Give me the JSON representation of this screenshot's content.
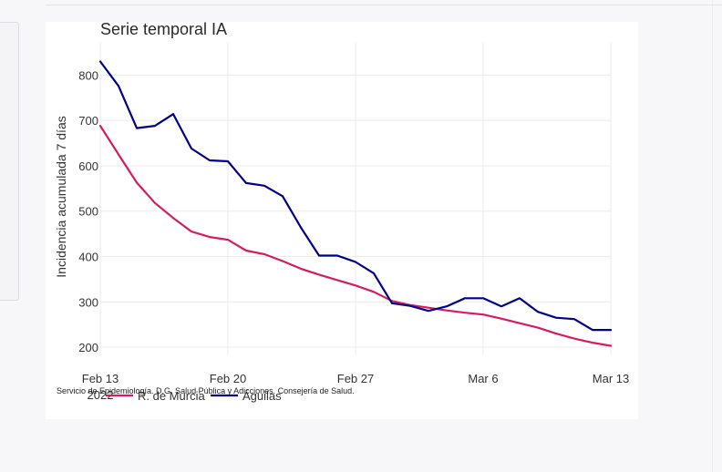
{
  "chart_data": {
    "type": "line",
    "title": "Serie temporal IA",
    "xlabel": "",
    "ylabel": "Incidencia acumulada 7 días",
    "x_ticks": [
      {
        "date": "2022-02-13",
        "label": "Feb 13",
        "sublabel": "2022"
      },
      {
        "date": "2022-02-20",
        "label": "Feb 20",
        "sublabel": ""
      },
      {
        "date": "2022-02-27",
        "label": "Feb 27",
        "sublabel": ""
      },
      {
        "date": "2022-03-06",
        "label": "Mar 6",
        "sublabel": ""
      },
      {
        "date": "2022-03-13",
        "label": "Mar 13",
        "sublabel": ""
      }
    ],
    "y_ticks": [
      "200",
      "300",
      "400",
      "500",
      "600",
      "700",
      "800"
    ],
    "xlim": [
      "2022-02-13",
      "2022-03-13"
    ],
    "ylim": [
      182,
      843
    ],
    "grid": true,
    "legend_position": "bottom-left",
    "x": [
      "2022-02-13",
      "2022-02-14",
      "2022-02-15",
      "2022-02-16",
      "2022-02-17",
      "2022-02-18",
      "2022-02-19",
      "2022-02-20",
      "2022-02-21",
      "2022-02-22",
      "2022-02-23",
      "2022-02-24",
      "2022-02-25",
      "2022-02-26",
      "2022-02-27",
      "2022-02-28",
      "2022-03-01",
      "2022-03-02",
      "2022-03-03",
      "2022-03-04",
      "2022-03-05",
      "2022-03-06",
      "2022-03-07",
      "2022-03-08",
      "2022-03-09",
      "2022-03-10",
      "2022-03-11",
      "2022-03-12",
      "2022-03-13"
    ],
    "series": [
      {
        "name": "R. de Murcia",
        "color": "#d81b60",
        "values": [
          688,
          625,
          563,
          518,
          485,
          455,
          443,
          437,
          413,
          405,
          390,
          373,
          360,
          348,
          336,
          322,
          302,
          293,
          287,
          281,
          276,
          272,
          263,
          253,
          243,
          230,
          219,
          210,
          203
        ]
      },
      {
        "name": "Águilas",
        "color": "#00008b",
        "values": [
          830,
          776,
          683,
          688,
          714,
          638,
          612,
          610,
          562,
          556,
          533,
          464,
          402,
          402,
          388,
          363,
          297,
          291,
          280,
          290,
          308,
          308,
          290,
          308,
          278,
          265,
          262,
          238,
          238
        ]
      }
    ]
  },
  "footnote": "Servicio de Epidemiología. D.G. Salud Pública y Adicciones. Consejería de Salud."
}
